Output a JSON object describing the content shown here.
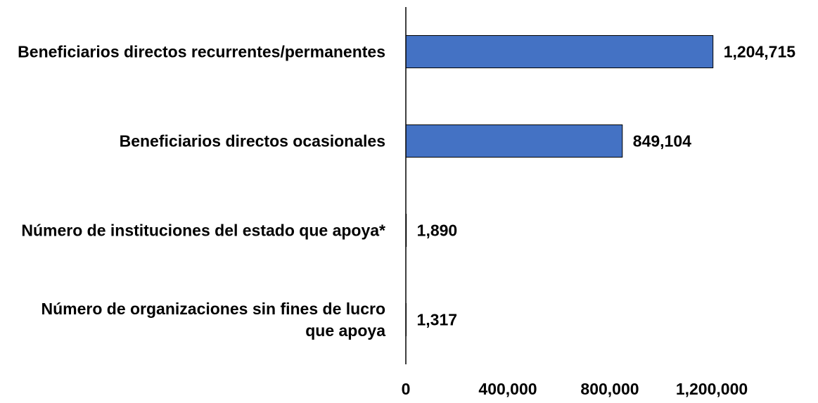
{
  "chart_data": {
    "type": "bar",
    "orientation": "horizontal",
    "categories": [
      "Beneficiarios directos recurrentes/permanentes",
      "Beneficiarios directos ocasionales",
      "Número de instituciones del estado que apoya*",
      "Número de organizaciones sin fines de lucro que apoya"
    ],
    "values": [
      1204715,
      849104,
      1890,
      1317
    ],
    "value_labels": [
      "1,204,715",
      "849,104",
      "1,890",
      "1,317"
    ],
    "color": "#4472c4",
    "xlim": [
      0,
      1200000
    ],
    "xticks": [
      0,
      {
        "value": 400000,
        "label": "400,000"
      },
      {
        "value": 800000,
        "label": "800,000"
      },
      {
        "value": 1200000,
        "label": "1,200,000"
      }
    ],
    "grid": false
  }
}
